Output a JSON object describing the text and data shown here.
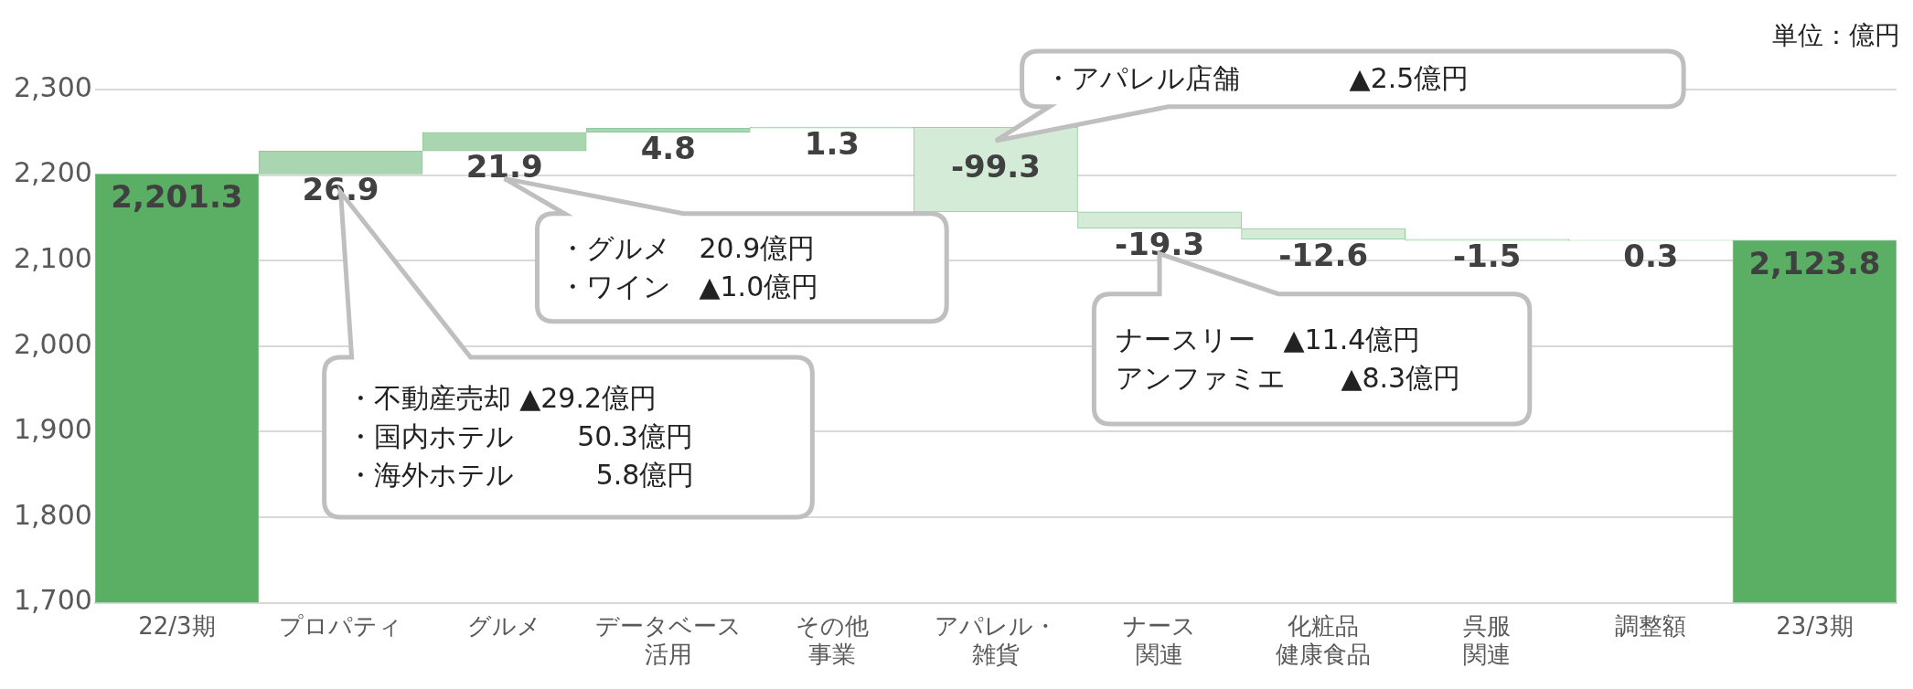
{
  "chart_data": {
    "type": "bar",
    "categories": [
      "22/3期",
      "プロパティ",
      "グルメ",
      "データベース活用",
      "その他事業",
      "アパレル・雑貨",
      "ナース関連",
      "化粧品健康食品",
      "呉服関連",
      "調整額",
      "23/3期"
    ],
    "values": [
      2201.3,
      26.9,
      21.9,
      4.8,
      1.3,
      -99.3,
      -19.3,
      -12.6,
      -1.5,
      0.3,
      2123.8
    ],
    "value_labels": [
      "2,201.3",
      "26.9",
      "21.9",
      "4.8",
      "1.3",
      "-99.3",
      "-19.3",
      "-12.6",
      "-1.5",
      "0.3",
      "2,123.8"
    ],
    "base": [
      null,
      2201.3,
      2228.2,
      2250.1,
      2254.9,
      2256.2,
      2156.9,
      2137.6,
      2125.0,
      2123.5,
      null
    ],
    "colors": [
      "#5aaf64",
      "#a9d5b0",
      "#a9d5b0",
      "#a9d5b0",
      "#a9d5b0",
      "#d4ecd7",
      "#d4ecd7",
      "#d4ecd7",
      "#d4ecd7",
      "#a9d5b0",
      "#5aaf64"
    ],
    "ylim": [
      1700,
      2300
    ],
    "yticks": [
      {
        "value": 1700,
        "label": "1,700"
      },
      {
        "value": 1800,
        "label": "1,800"
      },
      {
        "value": 1900,
        "label": "1,900"
      },
      {
        "value": 2000,
        "label": "2,000"
      },
      {
        "value": 2100,
        "label": "2,100"
      },
      {
        "value": 2200,
        "label": "2,200"
      },
      {
        "value": 2300,
        "label": "2,300"
      }
    ],
    "grid": "y",
    "legend": false,
    "annotations": [
      "・不動産売却 ▲29.2億円",
      "・国内ホテル　　 50.3億円",
      "・海外ホテル　　　5.8億円",
      "・グルメ　20.9億円",
      "・ワイン　▲1.0億円",
      "ナースリー　▲11.4億円",
      "アンファミエ　　▲8.3億円",
      "・アパレル店舗　　　　▲2.5億円",
      "単位：億円"
    ]
  }
}
